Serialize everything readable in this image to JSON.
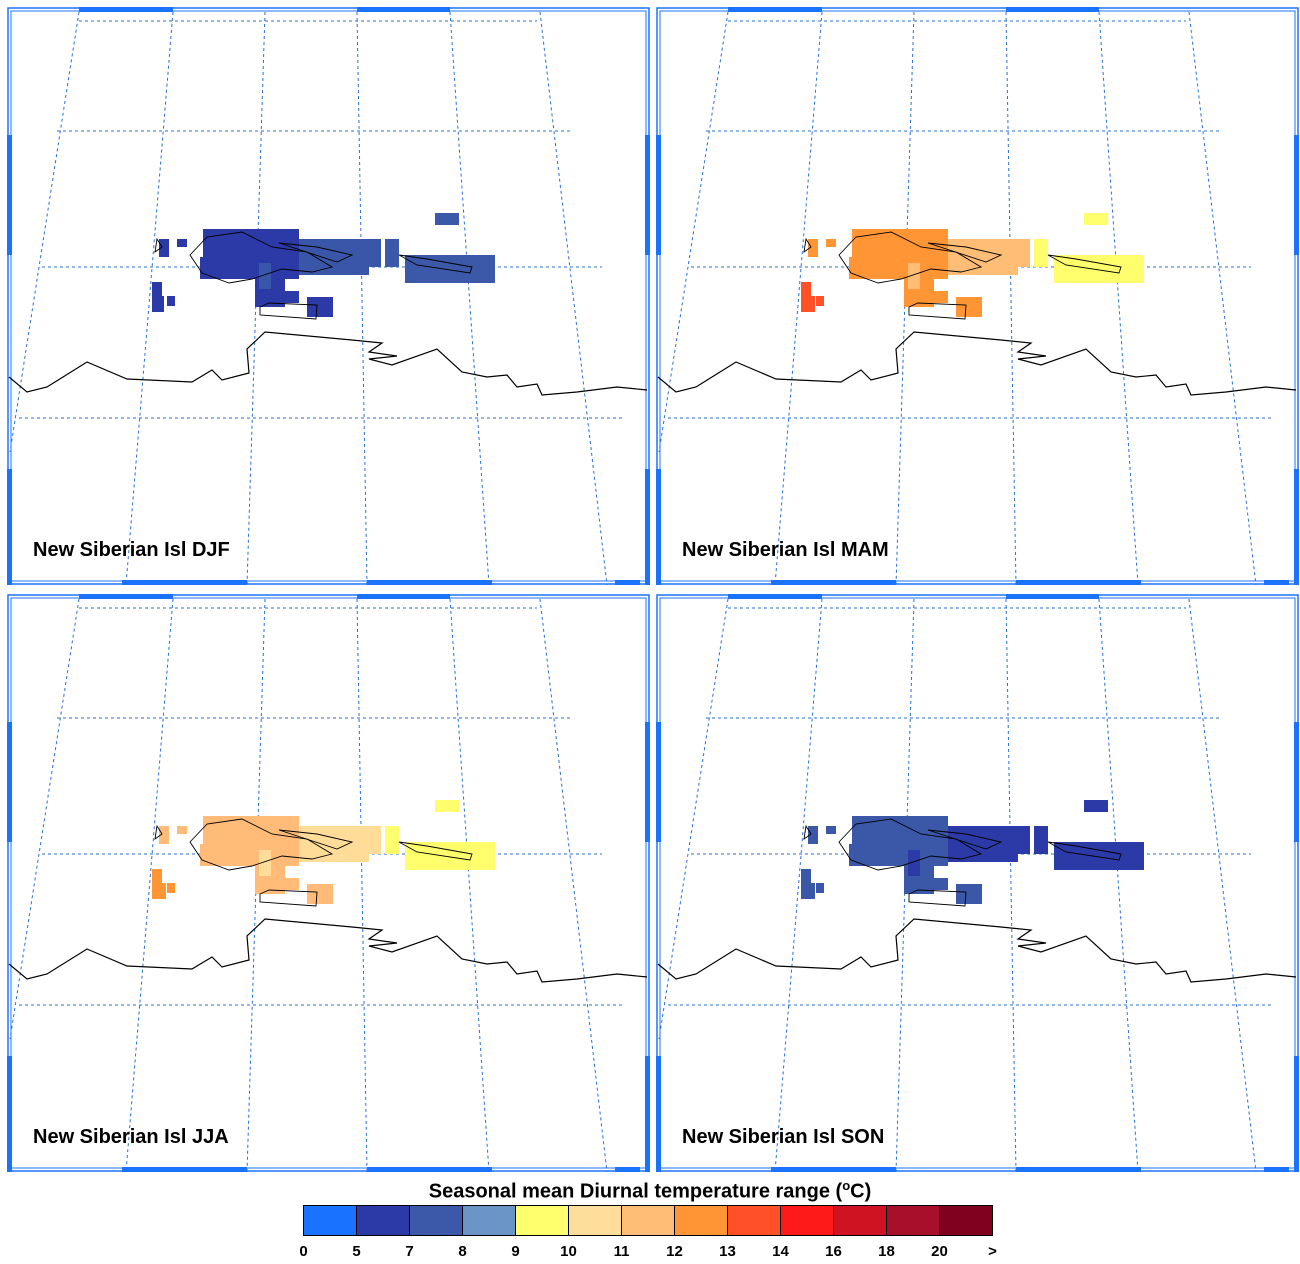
{
  "panels": [
    {
      "title": "New Siberian Isl DJF",
      "season": "DJF",
      "fill_colors": {
        "base": "#2b3aa6",
        "alt": "#3a56a8",
        "east": "#3b59a8"
      }
    },
    {
      "title": "New Siberian Isl MAM",
      "season": "MAM",
      "fill_colors": {
        "base": "#ff9535",
        "alt": "#ffbd75",
        "east": "#ffff6e",
        "island": "#ff5028"
      }
    },
    {
      "title": "New Siberian Isl JJA",
      "season": "JJA",
      "fill_colors": {
        "base": "#ffbb77",
        "alt": "#ffdd99",
        "east": "#ffff6e",
        "island": "#ff9535"
      }
    },
    {
      "title": "New Siberian Isl SON",
      "season": "SON",
      "fill_colors": {
        "base": "#3a57a8",
        "alt": "#2b3aa6",
        "east": "#2b3aa6",
        "island": "#3a57a8"
      }
    }
  ],
  "legend": {
    "title_prefix": "Seasonal mean Diurnal temperature range (",
    "title_sup": "o",
    "title_suffix": "C)",
    "tick_labels": [
      "0",
      "5",
      "7",
      "8",
      "9",
      "10",
      "11",
      "12",
      "13",
      "14",
      "16",
      "18",
      "20",
      ">"
    ],
    "colors": [
      "#1a73ff",
      "#2b3aa6",
      "#3b59a8",
      "#6a95c6",
      "#ffff6e",
      "#ffde9c",
      "#ffbd75",
      "#ff9535",
      "#ff5028",
      "#ff1a1a",
      "#d01322",
      "#a80f2a",
      "#800020"
    ]
  },
  "colors": {
    "grid_line": "#2a6fd6",
    "frame_accent": "#1a73ff",
    "coastline": "#000000"
  }
}
